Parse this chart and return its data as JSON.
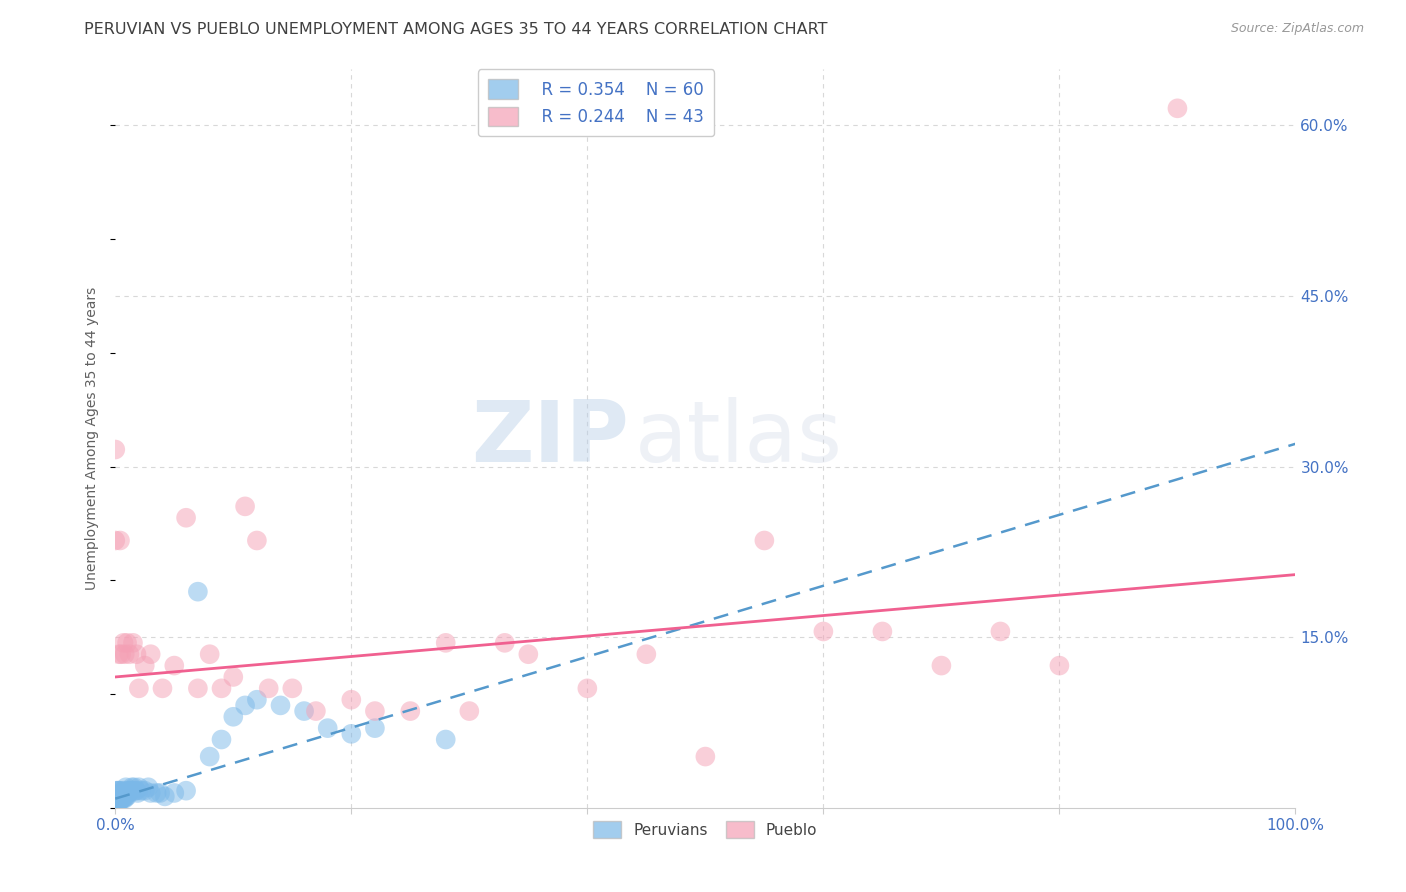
{
  "title": "PERUVIAN VS PUEBLO UNEMPLOYMENT AMONG AGES 35 TO 44 YEARS CORRELATION CHART",
  "source": "Source: ZipAtlas.com",
  "ylabel": "Unemployment Among Ages 35 to 44 years",
  "xlim": [
    0,
    1.0
  ],
  "ylim": [
    0,
    0.65
  ],
  "xticks": [
    0.0,
    0.2,
    0.4,
    0.6,
    0.8,
    1.0
  ],
  "xticklabels": [
    "0.0%",
    "",
    "",
    "",
    "",
    "100.0%"
  ],
  "ytick_positions": [
    0.0,
    0.15,
    0.3,
    0.45,
    0.6
  ],
  "ytick_labels_right": [
    "",
    "15.0%",
    "30.0%",
    "45.0%",
    "60.0%"
  ],
  "legend_r1": "R = 0.354",
  "legend_n1": "N = 60",
  "legend_r2": "R = 0.244",
  "legend_n2": "N = 43",
  "blue_scatter_color": "#7bb8e8",
  "pink_scatter_color": "#f4a0b5",
  "blue_line_color": "#5599cc",
  "pink_line_color": "#f06090",
  "watermark_zip": "ZIP",
  "watermark_atlas": "atlas",
  "bg_color": "#ffffff",
  "grid_color": "#d8d8d8",
  "title_color": "#404040",
  "axis_label_color": "#606060",
  "tick_color": "#4472c4",
  "peruvian_x": [
    0.0,
    0.0,
    0.0,
    0.001,
    0.001,
    0.001,
    0.001,
    0.002,
    0.002,
    0.002,
    0.003,
    0.003,
    0.003,
    0.003,
    0.004,
    0.004,
    0.004,
    0.005,
    0.005,
    0.006,
    0.006,
    0.007,
    0.007,
    0.008,
    0.008,
    0.009,
    0.009,
    0.01,
    0.01,
    0.011,
    0.012,
    0.013,
    0.014,
    0.015,
    0.016,
    0.017,
    0.018,
    0.019,
    0.02,
    0.022,
    0.025,
    0.028,
    0.03,
    0.035,
    0.038,
    0.042,
    0.05,
    0.06,
    0.07,
    0.08,
    0.09,
    0.1,
    0.11,
    0.12,
    0.14,
    0.16,
    0.18,
    0.2,
    0.22,
    0.28
  ],
  "peruvian_y": [
    0.0,
    0.005,
    0.01,
    0.0,
    0.005,
    0.01,
    0.015,
    0.005,
    0.01,
    0.015,
    0.005,
    0.008,
    0.01,
    0.015,
    0.006,
    0.01,
    0.015,
    0.008,
    0.013,
    0.008,
    0.013,
    0.008,
    0.015,
    0.008,
    0.013,
    0.01,
    0.018,
    0.01,
    0.015,
    0.013,
    0.015,
    0.015,
    0.018,
    0.015,
    0.018,
    0.015,
    0.015,
    0.013,
    0.018,
    0.015,
    0.015,
    0.018,
    0.013,
    0.013,
    0.013,
    0.01,
    0.013,
    0.015,
    0.19,
    0.045,
    0.06,
    0.08,
    0.09,
    0.095,
    0.09,
    0.085,
    0.07,
    0.065,
    0.07,
    0.06
  ],
  "pueblo_x": [
    0.0,
    0.0,
    0.003,
    0.004,
    0.005,
    0.007,
    0.008,
    0.01,
    0.012,
    0.015,
    0.018,
    0.02,
    0.025,
    0.03,
    0.04,
    0.05,
    0.06,
    0.07,
    0.08,
    0.09,
    0.1,
    0.11,
    0.12,
    0.13,
    0.15,
    0.17,
    0.2,
    0.22,
    0.25,
    0.28,
    0.3,
    0.33,
    0.35,
    0.4,
    0.45,
    0.5,
    0.55,
    0.6,
    0.65,
    0.7,
    0.75,
    0.8,
    0.9
  ],
  "pueblo_y": [
    0.235,
    0.315,
    0.135,
    0.235,
    0.135,
    0.145,
    0.135,
    0.145,
    0.135,
    0.145,
    0.135,
    0.105,
    0.125,
    0.135,
    0.105,
    0.125,
    0.255,
    0.105,
    0.135,
    0.105,
    0.115,
    0.265,
    0.235,
    0.105,
    0.105,
    0.085,
    0.095,
    0.085,
    0.085,
    0.145,
    0.085,
    0.145,
    0.135,
    0.105,
    0.135,
    0.045,
    0.235,
    0.155,
    0.155,
    0.125,
    0.155,
    0.125,
    0.615
  ],
  "peruvian_trend_x": [
    0.0,
    1.0
  ],
  "peruvian_trend_y": [
    0.008,
    0.32
  ],
  "pueblo_trend_x": [
    0.0,
    1.0
  ],
  "pueblo_trend_y": [
    0.115,
    0.205
  ]
}
